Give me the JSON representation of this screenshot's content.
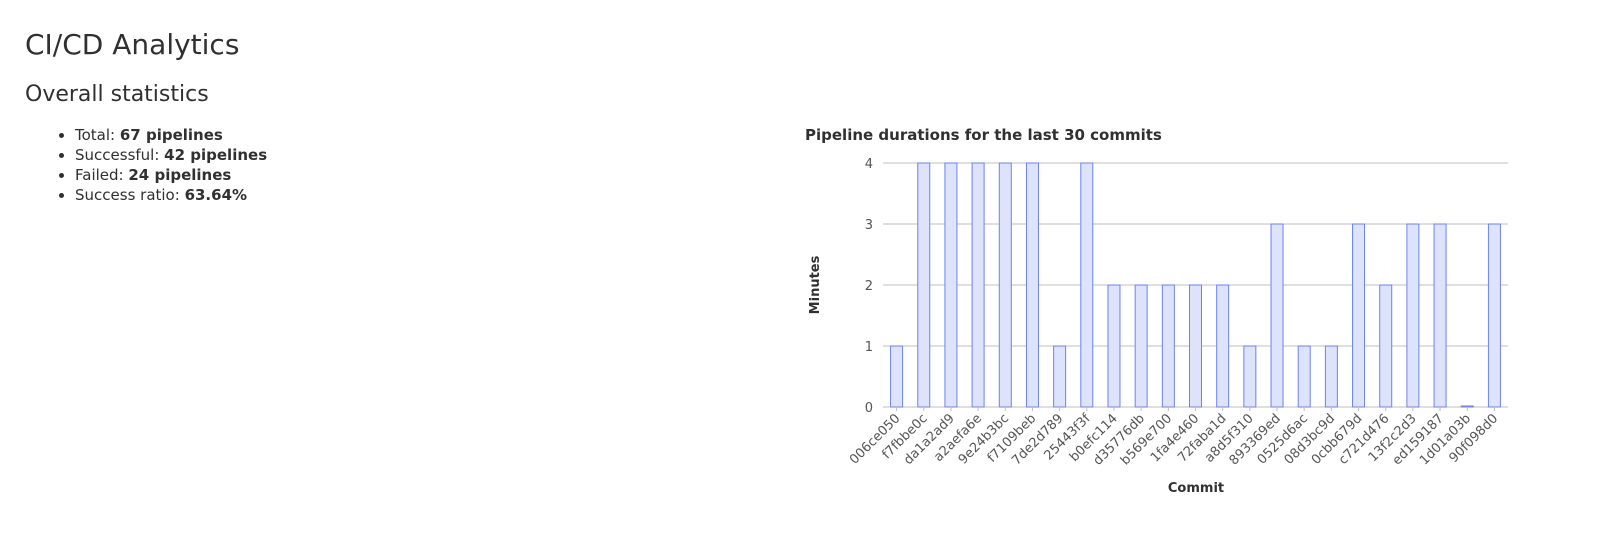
{
  "page": {
    "title": "CI/CD Analytics",
    "section_heading": "Overall statistics"
  },
  "stats": [
    {
      "label": "Total: ",
      "value": "67 pipelines"
    },
    {
      "label": "Successful: ",
      "value": "42 pipelines"
    },
    {
      "label": "Failed: ",
      "value": "24 pipelines"
    },
    {
      "label": "Success ratio: ",
      "value": "63.64%"
    }
  ],
  "chart_data": {
    "type": "bar",
    "title": "Pipeline durations for the last 30 commits",
    "xlabel": "Commit",
    "ylabel": "Minutes",
    "ylim": [
      0,
      4
    ],
    "yticks": [
      "0",
      "1",
      "2",
      "3",
      "4"
    ],
    "grid": true,
    "bar_fill": "#dde3fb",
    "bar_stroke": "#6d82ee",
    "categories": [
      "006ce050",
      "f7fbbe0c",
      "da1a2ad9",
      "a2aefa6e",
      "9e24b3bc",
      "f7109beb",
      "7de2d789",
      "25443f3f",
      "b0efc114",
      "d35776db",
      "b569e700",
      "1fa4e460",
      "72faba1d",
      "a8d5f310",
      "893369ed",
      "0525d6ac",
      "08d3bc9d",
      "0cbb679d",
      "c721d476",
      "13f2c2d3",
      "ed159187",
      "1d01a03b",
      "90f098d0"
    ],
    "values": [
      1,
      4,
      4,
      4,
      4,
      4,
      1,
      4,
      2,
      2,
      2,
      2,
      2,
      1,
      3,
      1,
      1,
      3,
      2,
      3,
      3,
      0,
      3
    ]
  }
}
